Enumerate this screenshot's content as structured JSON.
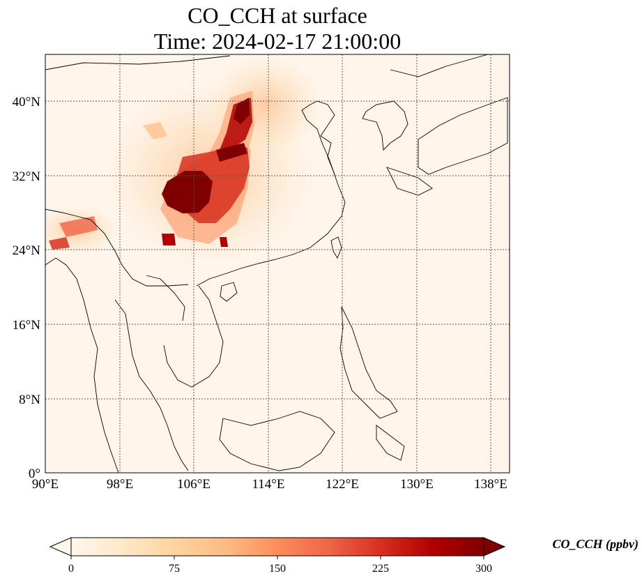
{
  "title": {
    "line1": "CO_CCH at surface",
    "line2": "Time: 2024-02-17 21:00:00"
  },
  "map": {
    "extent_lon": [
      90,
      140
    ],
    "extent_lat": [
      0,
      45
    ],
    "gridlines": "dotted",
    "lon_ticks": [
      {
        "lon": 90,
        "label": "90°E"
      },
      {
        "lon": 98,
        "label": "98°E"
      },
      {
        "lon": 106,
        "label": "106°E"
      },
      {
        "lon": 114,
        "label": "114°E"
      },
      {
        "lon": 122,
        "label": "122°E"
      },
      {
        "lon": 130,
        "label": "130°E"
      },
      {
        "lon": 138,
        "label": "138°E"
      }
    ],
    "lat_ticks": [
      {
        "lat": 0,
        "label": "0°"
      },
      {
        "lat": 8,
        "label": "8°N"
      },
      {
        "lat": 16,
        "label": "16°N"
      },
      {
        "lat": 24,
        "label": "24°N"
      },
      {
        "lat": 32,
        "label": "32°N"
      },
      {
        "lat": 40,
        "label": "40°N"
      }
    ],
    "background_color": "#fff5eb",
    "coastline_color": "#000000"
  },
  "colorbar": {
    "label": "CO_CCH (ppbv)",
    "colormap": "OrRd",
    "min": 0,
    "max": 300,
    "ticks": [
      0,
      75,
      150,
      225,
      300
    ],
    "extend": "both"
  }
}
